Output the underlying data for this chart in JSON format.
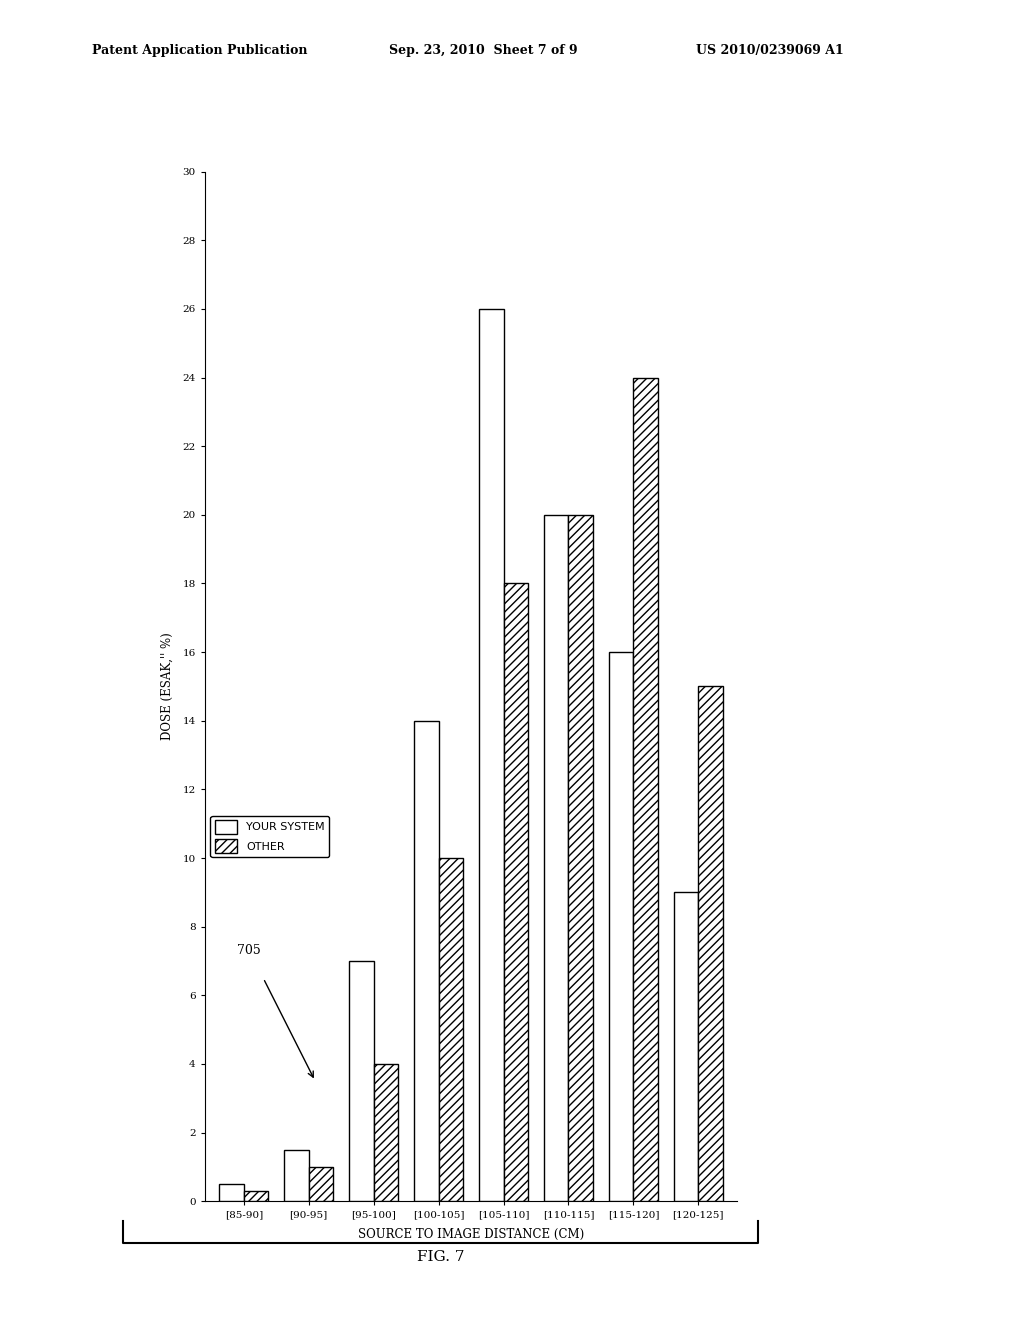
{
  "categories": [
    "[85-90]",
    "[90-95]",
    "[95-100]",
    "[100-105]",
    "[105-110]",
    "[110-115]",
    "[115-120]",
    "[120-125]"
  ],
  "your_system": [
    0.5,
    1.5,
    7.0,
    14.0,
    26.0,
    20.0,
    16.0,
    9.0
  ],
  "other": [
    0.3,
    1.0,
    4.0,
    10.0,
    18.0,
    20.0,
    24.0,
    15.0
  ],
  "dose_label": "DOSE (ESAK,'' %)",
  "sid_label": "SOURCE TO IMAGE DISTANCE (CM)",
  "dose_ticks": [
    0,
    2,
    4,
    6,
    8,
    10,
    12,
    14,
    16,
    18,
    20,
    22,
    24,
    26,
    28,
    30
  ],
  "dose_max": 30,
  "title_top_left": "Patent Application Publication",
  "title_top_center": "Sep. 23, 2010  Sheet 7 of 9",
  "title_top_right": "US 2010/0239069 A1",
  "fig_label": "FIG. 7",
  "annotation_label": "705",
  "legend_your_system": "YOUR SYSTEM",
  "legend_other": "OTHER",
  "bg_color": "#ffffff",
  "bar_color_your": "#ffffff",
  "bar_color_other": "#ffffff",
  "bar_edge_color": "#000000"
}
